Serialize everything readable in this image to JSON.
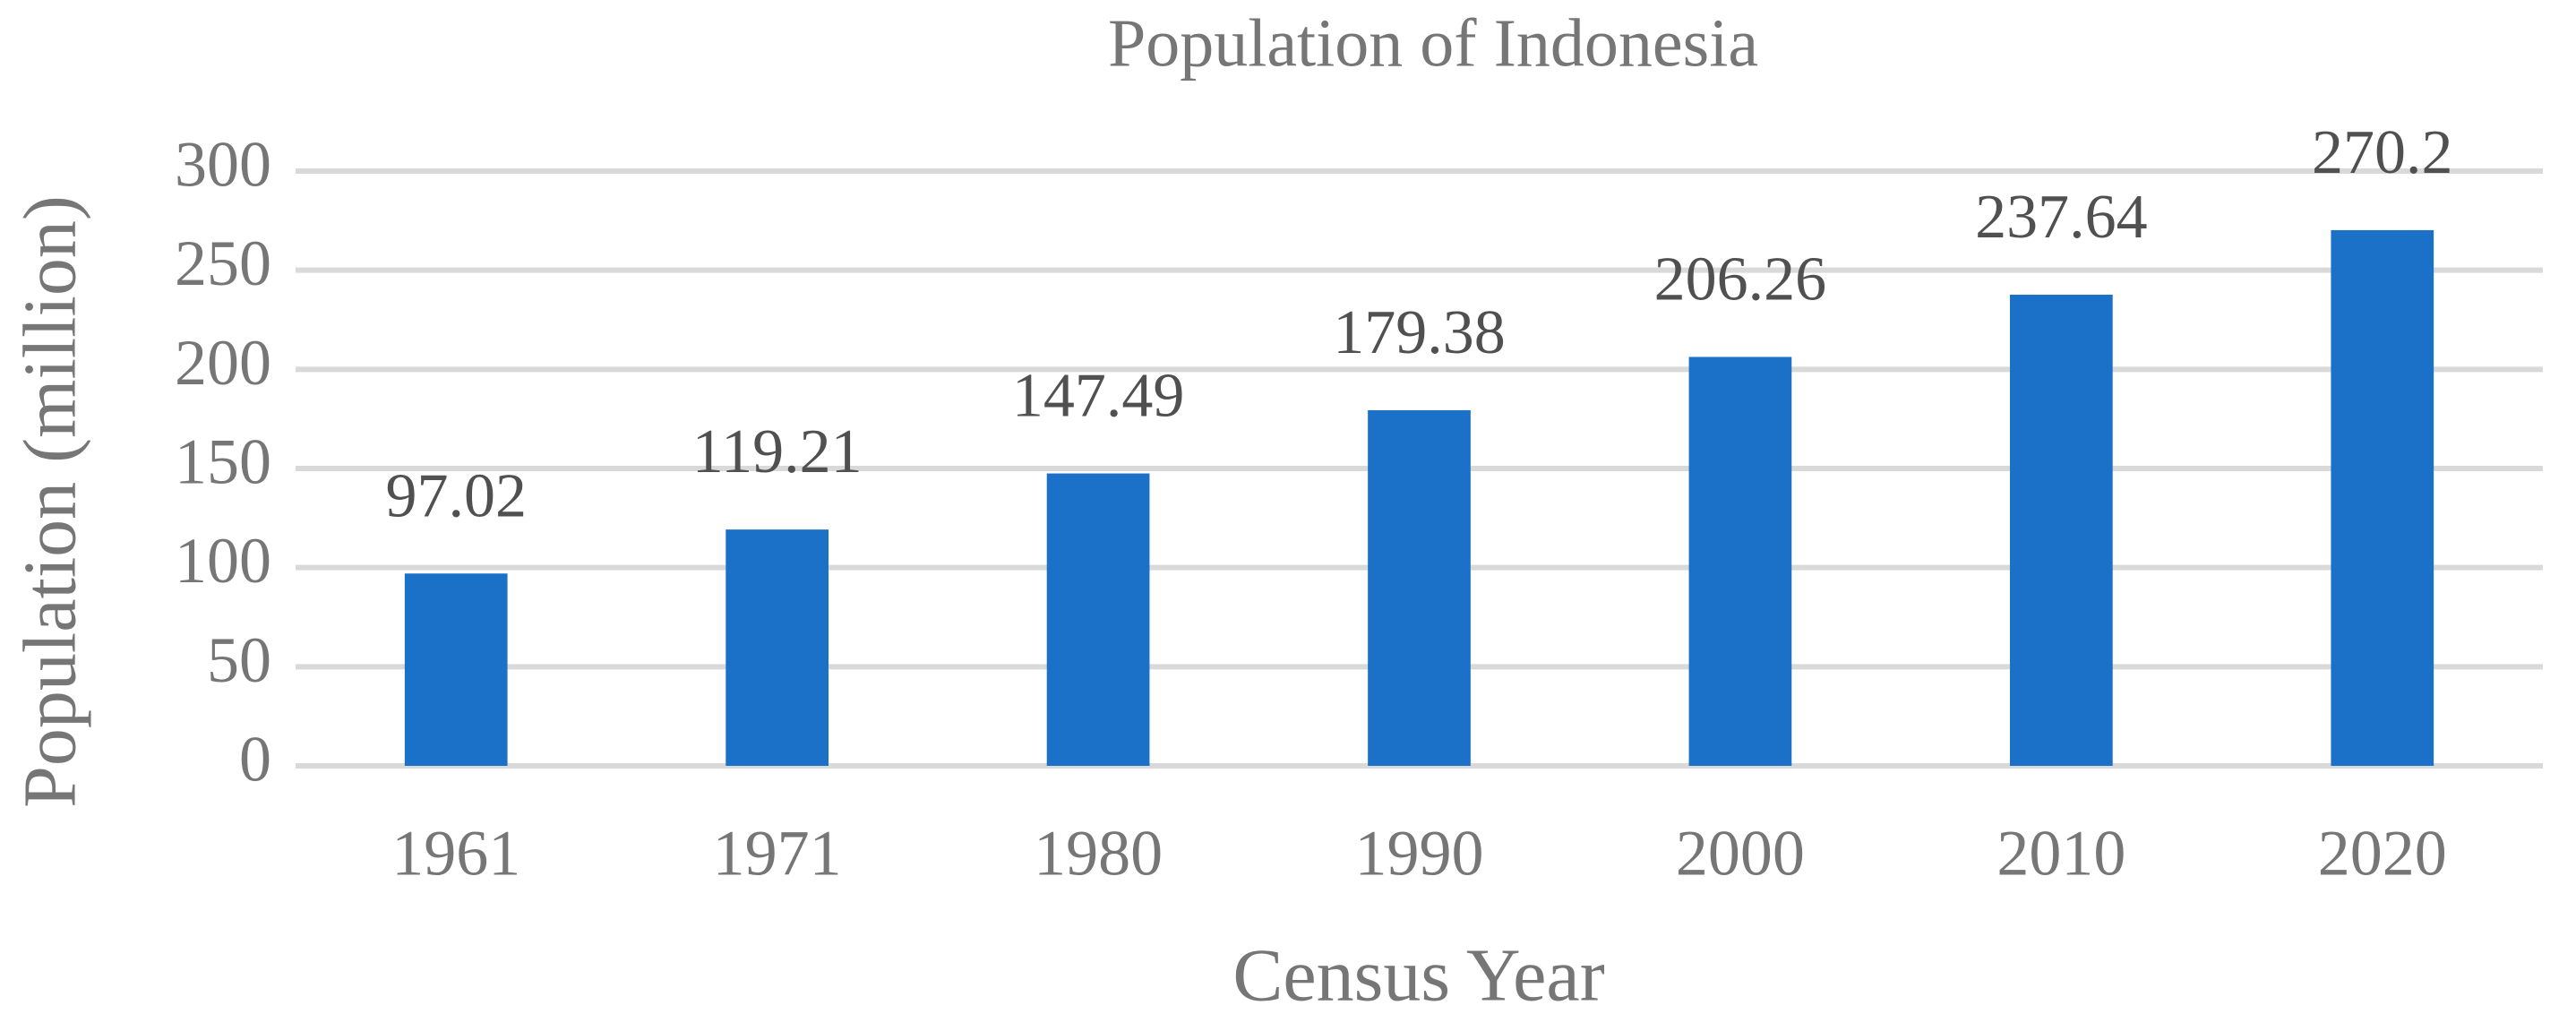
{
  "chart_data": {
    "type": "bar",
    "title": "Population of Indonesia",
    "x_label": "Census Year",
    "y_label": "Population (million)",
    "categories": [
      "1961",
      "1971",
      "1980",
      "1990",
      "2000",
      "2010",
      "2020"
    ],
    "values": [
      97.02,
      119.21,
      147.49,
      179.38,
      206.26,
      237.64,
      270.2
    ],
    "color": "#1b70c8",
    "ylim": [
      0,
      300
    ],
    "yticks": [
      0,
      50,
      100,
      150,
      200,
      250,
      300
    ],
    "grid": true
  }
}
